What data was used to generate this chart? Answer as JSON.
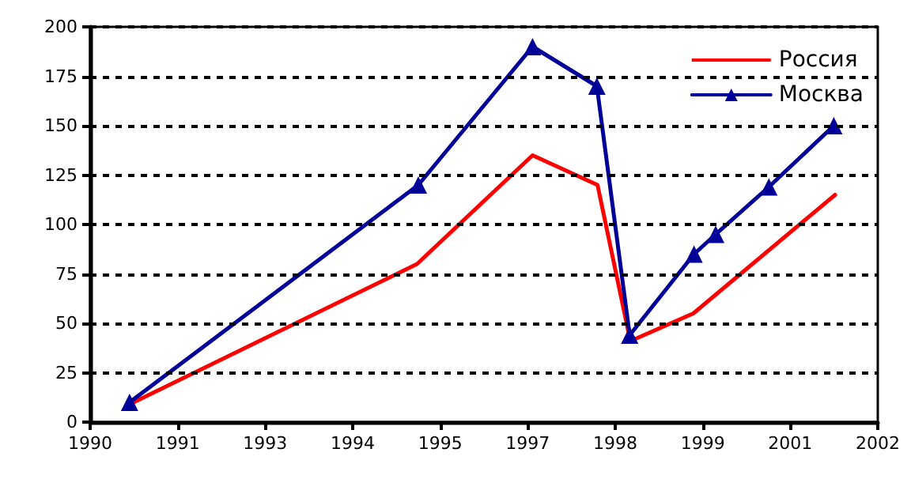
{
  "chart_data": {
    "type": "line",
    "xlim": [
      1990,
      2002
    ],
    "xticks": [
      1990,
      {
        "value": 1991.333,
        "label": "1991"
      },
      {
        "value": 1992.667,
        "label": "1993"
      },
      1994,
      {
        "value": 1995.333,
        "label": "1995"
      },
      {
        "value": 1996.667,
        "label": "1997"
      },
      1998,
      {
        "value": 1999.333,
        "label": "1999"
      },
      {
        "value": 2000.667,
        "label": "2001"
      },
      2002
    ],
    "ylim": [
      0,
      200
    ],
    "yticks": [
      0,
      25,
      50,
      75,
      100,
      125,
      150,
      175,
      200
    ],
    "grid": "y",
    "legend": "top right",
    "series": [
      {
        "name": "Россия",
        "color": "#ff0000",
        "marker": "none",
        "x": [
          1990.6,
          1994.98,
          1996.74,
          1997.73,
          1998.23,
          1999.19,
          2001.35
        ],
        "values": [
          9,
          80,
          135,
          120,
          41,
          55,
          115
        ]
      },
      {
        "name": "Москва",
        "color": "#000099",
        "marker": "triangle",
        "x": [
          1990.6,
          1995.0,
          1996.74,
          1997.72,
          1998.22,
          1999.2,
          1999.53,
          2000.34,
          2001.33
        ],
        "values": [
          10,
          120,
          190,
          170,
          44,
          85,
          95,
          119,
          150
        ]
      }
    ]
  }
}
